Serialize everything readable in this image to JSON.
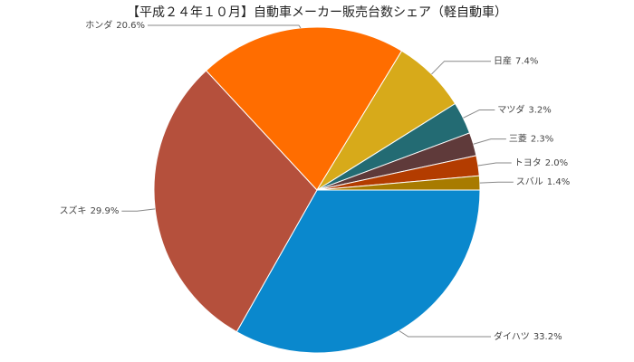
{
  "chart_data": {
    "type": "pie",
    "title": "【平成２４年１０月】自動車メーカー販売台数シェア（軽自動車）",
    "categories": [
      "ダイハツ",
      "スズキ",
      "ホンダ",
      "日産",
      "マツダ",
      "三菱",
      "トヨタ",
      "スバル"
    ],
    "values": [
      33.2,
      29.9,
      20.6,
      7.4,
      3.2,
      2.3,
      2.0,
      1.4
    ],
    "value_labels": [
      "33.2%",
      "29.9%",
      "20.6%",
      "7.4%",
      "3.2%",
      "2.3%",
      "2.0%",
      "1.4%"
    ],
    "colors": [
      "#0a88cd",
      "#b5503c",
      "#ff6d00",
      "#d7aa1a",
      "#236b73",
      "#5f3a3a",
      "#b33c00",
      "#a87b00"
    ]
  }
}
